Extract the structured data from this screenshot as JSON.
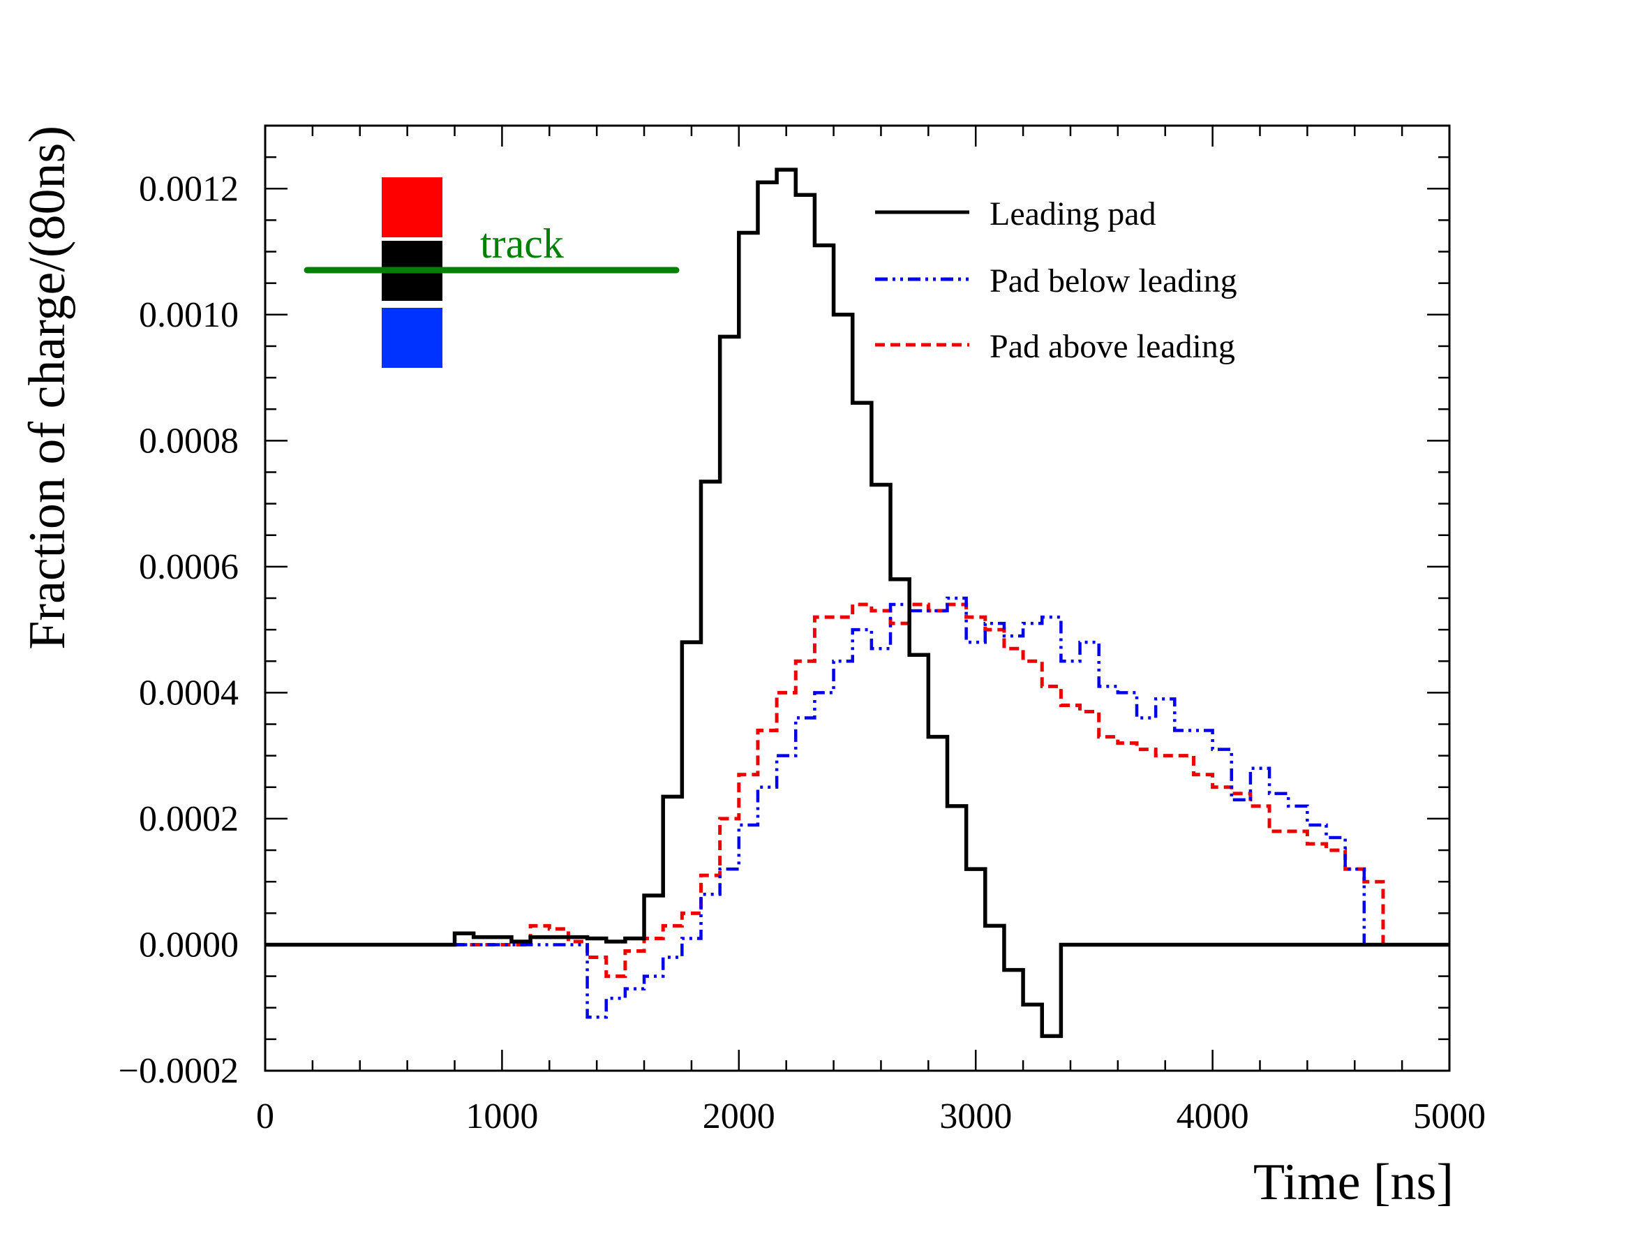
{
  "chart_data": {
    "type": "line",
    "subtype": "step-histogram",
    "xlabel": "Time [ns]",
    "ylabel": "Fraction of charge/(80ns)",
    "xlim": [
      0,
      5000
    ],
    "ylim": [
      -0.0002,
      0.0013
    ],
    "xticks": [
      0,
      1000,
      2000,
      3000,
      4000,
      5000
    ],
    "xtick_labels": [
      "0",
      "1000",
      "2000",
      "3000",
      "4000",
      "5000"
    ],
    "yticks": [
      -0.0002,
      0.0,
      0.0002,
      0.0004,
      0.0006,
      0.0008,
      0.001,
      0.0012
    ],
    "ytick_labels": [
      "−0.0002",
      "0.0000",
      "0.0002",
      "0.0004",
      "0.0006",
      "0.0008",
      "0.0010",
      "0.0012"
    ],
    "grid": false,
    "legend_position": "top-right",
    "series": [
      {
        "name": "Leading pad",
        "color": "#000000",
        "style": "solid",
        "edges": [
          0,
          800,
          880,
          960,
          1040,
          1120,
          1200,
          1280,
          1360,
          1440,
          1520,
          1600,
          1680,
          1760,
          1840,
          1920,
          2000,
          2080,
          2160,
          2240,
          2320,
          2400,
          2480,
          2560,
          2640,
          2720,
          2800,
          2880,
          2960,
          3040,
          3120,
          3200,
          3280,
          3360,
          5000
        ],
        "values": [
          0,
          1.8e-05,
          1.2e-05,
          1.2e-05,
          5e-06,
          1.2e-05,
          1.2e-05,
          1.2e-05,
          1e-05,
          5e-06,
          1e-05,
          7.8e-05,
          0.000235,
          0.00048,
          0.000735,
          0.000965,
          0.00113,
          0.00121,
          0.00123,
          0.00119,
          0.00111,
          0.001,
          0.00086,
          0.00073,
          0.00058,
          0.00046,
          0.00033,
          0.00022,
          0.00012,
          3e-05,
          -4e-05,
          -9.5e-05,
          -0.000145,
          0
        ]
      },
      {
        "name": "Pad below leading",
        "color": "#0000ee",
        "style": "dash-dot-dot",
        "edges": [
          800,
          1360,
          1440,
          1520,
          1600,
          1680,
          1760,
          1840,
          1920,
          2000,
          2080,
          2160,
          2240,
          2320,
          2400,
          2480,
          2560,
          2640,
          2720,
          2800,
          2880,
          2960,
          3040,
          3120,
          3200,
          3280,
          3360,
          3440,
          3520,
          3600,
          3680,
          3760,
          3840,
          3920,
          4000,
          4080,
          4160,
          4240,
          4320,
          4400,
          4480,
          4560,
          4640,
          4720
        ],
        "values": [
          0,
          -0.000115,
          -8.5e-05,
          -7e-05,
          -5e-05,
          -2e-05,
          1e-05,
          8e-05,
          0.00012,
          0.00019,
          0.00025,
          0.0003,
          0.00036,
          0.0004,
          0.00045,
          0.0005,
          0.00047,
          0.00054,
          0.00053,
          0.00053,
          0.00055,
          0.00048,
          0.00051,
          0.00049,
          0.00051,
          0.00052,
          0.00045,
          0.00048,
          0.00041,
          0.0004,
          0.00036,
          0.00039,
          0.00034,
          0.00034,
          0.00031,
          0.00023,
          0.00028,
          0.00024,
          0.00022,
          0.00019,
          0.00017,
          0.00012,
          0.0
        ]
      },
      {
        "name": "Pad above leading",
        "color": "#ee0000",
        "style": "dashed",
        "edges": [
          800,
          1120,
          1200,
          1280,
          1360,
          1440,
          1520,
          1600,
          1680,
          1760,
          1840,
          1920,
          2000,
          2080,
          2160,
          2240,
          2320,
          2400,
          2480,
          2560,
          2640,
          2720,
          2800,
          2880,
          2960,
          3040,
          3120,
          3200,
          3280,
          3360,
          3440,
          3520,
          3600,
          3680,
          3760,
          3840,
          3920,
          4000,
          4080,
          4160,
          4240,
          4320,
          4400,
          4480,
          4560,
          4640,
          4720
        ],
        "values": [
          0,
          3e-05,
          2.5e-05,
          5e-06,
          -2e-05,
          -5e-05,
          -1e-05,
          1e-05,
          3e-05,
          5e-05,
          0.00011,
          0.0002,
          0.00027,
          0.00034,
          0.0004,
          0.00045,
          0.00052,
          0.00052,
          0.00054,
          0.00053,
          0.00051,
          0.00054,
          0.00053,
          0.00054,
          0.00052,
          0.0005,
          0.00047,
          0.00045,
          0.00041,
          0.00038,
          0.00037,
          0.00033,
          0.00032,
          0.00031,
          0.0003,
          0.0003,
          0.00027,
          0.00025,
          0.00024,
          0.00022,
          0.00018,
          0.00018,
          0.00016,
          0.00015,
          0.00012,
          0.0001,
          0.0
        ]
      }
    ],
    "annotation": {
      "label": "track",
      "track_color": "#008000",
      "pad_colors": [
        "#ff0000",
        "#000000",
        "#0033ff"
      ]
    }
  }
}
